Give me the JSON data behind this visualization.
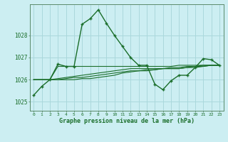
{
  "title": "Graphe pression niveau de la mer (hPa)",
  "background_color": "#cceef2",
  "grid_color": "#aad8dc",
  "line_color": "#1a6e2a",
  "spine_color": "#5a8a6a",
  "xlim": [
    -0.5,
    23.5
  ],
  "ylim": [
    1024.6,
    1029.4
  ],
  "yticks": [
    1025,
    1026,
    1027,
    1028
  ],
  "xticks": [
    0,
    1,
    2,
    3,
    4,
    5,
    6,
    7,
    8,
    9,
    10,
    11,
    12,
    13,
    14,
    15,
    16,
    17,
    18,
    19,
    20,
    21,
    22,
    23
  ],
  "series": [
    [
      1025.3,
      1025.7,
      1026.0,
      1026.7,
      1026.6,
      1026.6,
      1028.5,
      1028.75,
      1029.15,
      1028.55,
      1028.0,
      1027.5,
      1027.0,
      1026.65,
      1026.65,
      1025.8,
      1025.55,
      1025.95,
      1026.2,
      1026.2,
      1026.55,
      1026.95,
      1026.9,
      1026.65
    ],
    [
      1026.0,
      1026.0,
      1026.0,
      1026.6,
      1026.6,
      1026.6,
      1026.6,
      1026.6,
      1026.6,
      1026.6,
      1026.6,
      1026.6,
      1026.6,
      1026.6,
      1026.6,
      1026.6,
      1026.6,
      1026.6,
      1026.65,
      1026.65,
      1026.65,
      1026.65,
      1026.65,
      1026.65
    ],
    [
      1026.0,
      1026.0,
      1026.0,
      1026.05,
      1026.1,
      1026.15,
      1026.2,
      1026.25,
      1026.3,
      1026.35,
      1026.4,
      1026.45,
      1026.5,
      1026.5,
      1026.5,
      1026.5,
      1026.5,
      1026.55,
      1026.55,
      1026.6,
      1026.6,
      1026.65,
      1026.65,
      1026.65
    ],
    [
      1026.0,
      1026.0,
      1026.0,
      1026.0,
      1026.05,
      1026.1,
      1026.1,
      1026.15,
      1026.2,
      1026.25,
      1026.3,
      1026.35,
      1026.4,
      1026.4,
      1026.45,
      1026.45,
      1026.5,
      1026.5,
      1026.5,
      1026.55,
      1026.6,
      1026.6,
      1026.65,
      1026.65
    ],
    [
      1026.0,
      1026.0,
      1026.0,
      1026.0,
      1026.0,
      1026.0,
      1026.05,
      1026.05,
      1026.1,
      1026.15,
      1026.2,
      1026.3,
      1026.35,
      1026.4,
      1026.4,
      1026.45,
      1026.5,
      1026.5,
      1026.5,
      1026.55,
      1026.55,
      1026.6,
      1026.65,
      1026.65
    ]
  ]
}
